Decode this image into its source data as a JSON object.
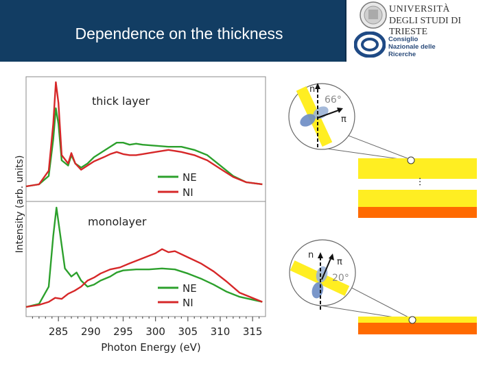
{
  "slide": {
    "title": "Dependence on the thickness"
  },
  "logos": {
    "university_line1": "UNIVERSITÀ",
    "university_line2": "DEGLI STUDI DI TRIESTE",
    "cnr_lines": [
      "Consiglio",
      "Nazionale delle",
      "Ricerche"
    ]
  },
  "colors": {
    "banner": "#123d63",
    "ne_series": "#2ca02c",
    "ni_series": "#d62728",
    "layer_yellow": "#ffee22",
    "substrate_orange": "#ff6a00"
  },
  "chart_data": [
    {
      "type": "line",
      "title": "thick layer",
      "xlabel": "Photon Energy (eV)",
      "ylabel": "Intensity (arb. units)",
      "xlim": [
        280,
        317
      ],
      "x_ticks": [
        "285",
        "290",
        "295",
        "300",
        "305",
        "310",
        "315"
      ],
      "series": [
        {
          "name": "NE",
          "color": "#2ca02c",
          "points": [
            [
              280,
              0.0
            ],
            [
              282,
              0.02
            ],
            [
              283.5,
              0.1
            ],
            [
              284.2,
              0.45
            ],
            [
              284.6,
              0.75
            ],
            [
              285,
              0.6
            ],
            [
              285.5,
              0.25
            ],
            [
              286.5,
              0.2
            ],
            [
              287,
              0.3
            ],
            [
              287.6,
              0.22
            ],
            [
              288.5,
              0.18
            ],
            [
              289.5,
              0.22
            ],
            [
              290.5,
              0.28
            ],
            [
              292,
              0.34
            ],
            [
              293,
              0.38
            ],
            [
              294,
              0.42
            ],
            [
              295,
              0.42
            ],
            [
              296,
              0.4
            ],
            [
              297,
              0.41
            ],
            [
              298,
              0.4
            ],
            [
              300,
              0.39
            ],
            [
              302,
              0.38
            ],
            [
              304,
              0.38
            ],
            [
              306,
              0.35
            ],
            [
              308,
              0.3
            ],
            [
              310,
              0.2
            ],
            [
              312,
              0.1
            ],
            [
              314,
              0.04
            ],
            [
              316.5,
              0.02
            ]
          ]
        },
        {
          "name": "NI",
          "color": "#d62728",
          "points": [
            [
              280,
              0.0
            ],
            [
              282,
              0.02
            ],
            [
              283.5,
              0.15
            ],
            [
              284.2,
              0.6
            ],
            [
              284.6,
              1.0
            ],
            [
              285,
              0.8
            ],
            [
              285.5,
              0.3
            ],
            [
              286.5,
              0.22
            ],
            [
              287,
              0.32
            ],
            [
              287.6,
              0.22
            ],
            [
              288.5,
              0.16
            ],
            [
              289.5,
              0.2
            ],
            [
              290.5,
              0.24
            ],
            [
              292,
              0.28
            ],
            [
              293,
              0.31
            ],
            [
              294,
              0.33
            ],
            [
              295,
              0.31
            ],
            [
              296,
              0.3
            ],
            [
              297,
              0.3
            ],
            [
              298,
              0.31
            ],
            [
              300,
              0.33
            ],
            [
              302,
              0.35
            ],
            [
              304,
              0.33
            ],
            [
              306,
              0.3
            ],
            [
              308,
              0.25
            ],
            [
              310,
              0.17
            ],
            [
              312,
              0.09
            ],
            [
              314,
              0.04
            ],
            [
              316.5,
              0.02
            ]
          ]
        }
      ]
    },
    {
      "type": "line",
      "title": "monolayer",
      "xlabel": "Photon Energy (eV)",
      "ylabel": "Intensity (arb. units)",
      "xlim": [
        280,
        317
      ],
      "x_ticks": [
        "285",
        "290",
        "295",
        "300",
        "305",
        "310",
        "315"
      ],
      "series": [
        {
          "name": "NE",
          "color": "#2ca02c",
          "points": [
            [
              280,
              0.0
            ],
            [
              282,
              0.03
            ],
            [
              283.5,
              0.2
            ],
            [
              284.2,
              0.7
            ],
            [
              284.7,
              0.98
            ],
            [
              285.2,
              0.75
            ],
            [
              286,
              0.38
            ],
            [
              287,
              0.3
            ],
            [
              287.8,
              0.34
            ],
            [
              288.5,
              0.26
            ],
            [
              289.5,
              0.2
            ],
            [
              290.5,
              0.22
            ],
            [
              291.5,
              0.26
            ],
            [
              293,
              0.3
            ],
            [
              294,
              0.34
            ],
            [
              295,
              0.36
            ],
            [
              297,
              0.37
            ],
            [
              299,
              0.37
            ],
            [
              301,
              0.38
            ],
            [
              303,
              0.37
            ],
            [
              305,
              0.33
            ],
            [
              307,
              0.28
            ],
            [
              309,
              0.22
            ],
            [
              311,
              0.15
            ],
            [
              313,
              0.1
            ],
            [
              316.5,
              0.05
            ]
          ]
        },
        {
          "name": "NI",
          "color": "#d62728",
          "points": [
            [
              280,
              0.0
            ],
            [
              282,
              0.02
            ],
            [
              283.5,
              0.05
            ],
            [
              284.5,
              0.09
            ],
            [
              285.5,
              0.08
            ],
            [
              286.5,
              0.13
            ],
            [
              287.5,
              0.16
            ],
            [
              288.5,
              0.2
            ],
            [
              289.5,
              0.26
            ],
            [
              290.5,
              0.29
            ],
            [
              291.5,
              0.33
            ],
            [
              293,
              0.37
            ],
            [
              294.5,
              0.39
            ],
            [
              296,
              0.43
            ],
            [
              298,
              0.48
            ],
            [
              300,
              0.53
            ],
            [
              301,
              0.57
            ],
            [
              302,
              0.54
            ],
            [
              303,
              0.55
            ],
            [
              305,
              0.49
            ],
            [
              307,
              0.43
            ],
            [
              309,
              0.35
            ],
            [
              311,
              0.25
            ],
            [
              313,
              0.14
            ],
            [
              316.5,
              0.05
            ]
          ]
        }
      ]
    }
  ],
  "diagram_thick": {
    "normal_label": "n",
    "pi_label": "π",
    "angle_label": "66°",
    "ellipsis": "..."
  },
  "diagram_mono": {
    "normal_label": "n",
    "pi_label": "π",
    "angle_label": "20°"
  }
}
